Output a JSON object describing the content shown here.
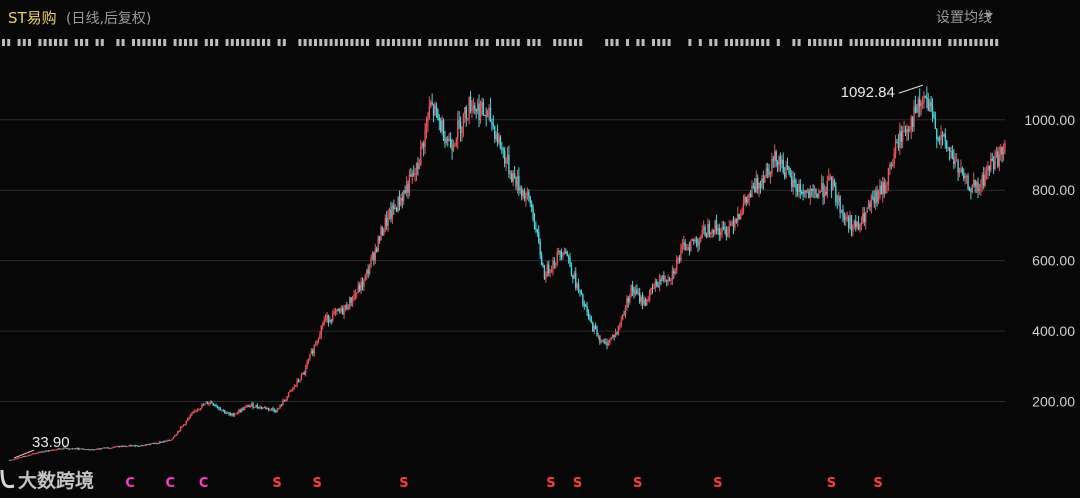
{
  "header": {
    "title": "ST易购",
    "subtitle": "(日线,后复权)",
    "ma_button_label": "设置均线"
  },
  "watermark": {
    "text": "大数跨境"
  },
  "colors": {
    "up": "#e8545a",
    "down": "#46d6e0",
    "grid": "#2b2b2b",
    "axis_text": "#d0d0d0",
    "marker_red": "#ff3a3a",
    "marker_magenta": "#ff3ad2"
  },
  "chart_data": {
    "type": "candlestick",
    "title": "ST易购",
    "ylim": [
      0,
      1130
    ],
    "y_ticks": [
      200,
      400,
      600,
      800,
      1000
    ],
    "y_tick_labels": [
      "200.00",
      "400.00",
      "600.00",
      "800.00",
      "1000.00"
    ],
    "grid": true,
    "annotations": [
      {
        "label": "33.90",
        "value": 33.9,
        "position": "start"
      },
      {
        "label": "1092.84",
        "value": 1092.84,
        "position": "peak"
      }
    ],
    "close_path": [
      [
        0,
        33.9
      ],
      [
        4,
        55
      ],
      [
        8,
        68
      ],
      [
        12,
        64
      ],
      [
        16,
        72
      ],
      [
        20,
        76
      ],
      [
        24,
        90
      ],
      [
        28,
        180
      ],
      [
        30,
        200
      ],
      [
        33,
        160
      ],
      [
        36,
        190
      ],
      [
        40,
        175
      ],
      [
        44,
        280
      ],
      [
        47,
        430
      ],
      [
        50,
        460
      ],
      [
        53,
        540
      ],
      [
        56,
        700
      ],
      [
        58,
        760
      ],
      [
        61,
        860
      ],
      [
        63,
        1040
      ],
      [
        66,
        930
      ],
      [
        69,
        1050
      ],
      [
        72,
        1000
      ],
      [
        75,
        850
      ],
      [
        78,
        760
      ],
      [
        80,
        560
      ],
      [
        83,
        640
      ],
      [
        85,
        520
      ],
      [
        87,
        420
      ],
      [
        89,
        360
      ],
      [
        91,
        400
      ],
      [
        93,
        520
      ],
      [
        95,
        480
      ],
      [
        97,
        540
      ],
      [
        99,
        560
      ],
      [
        101,
        640
      ],
      [
        103,
        660
      ],
      [
        105,
        700
      ],
      [
        107,
        680
      ],
      [
        110,
        760
      ],
      [
        113,
        850
      ],
      [
        115,
        900
      ],
      [
        117,
        820
      ],
      [
        120,
        780
      ],
      [
        123,
        820
      ],
      [
        125,
        720
      ],
      [
        127,
        690
      ],
      [
        129,
        760
      ],
      [
        131,
        810
      ],
      [
        133,
        940
      ],
      [
        135,
        1000
      ],
      [
        137,
        1060
      ],
      [
        139,
        960
      ],
      [
        141,
        900
      ],
      [
        143,
        820
      ],
      [
        145,
        800
      ],
      [
        147,
        880
      ],
      [
        149,
        910
      ]
    ],
    "event_markers": [
      {
        "index": 18,
        "symbol": "C",
        "color": "magenta"
      },
      {
        "index": 24,
        "symbol": "C",
        "color": "magenta"
      },
      {
        "index": 29,
        "symbol": "C",
        "color": "magenta"
      },
      {
        "index": 40,
        "symbol": "S",
        "color": "red"
      },
      {
        "index": 46,
        "symbol": "S",
        "color": "red"
      },
      {
        "index": 59,
        "symbol": "S",
        "color": "red"
      },
      {
        "index": 81,
        "symbol": "S",
        "color": "red"
      },
      {
        "index": 85,
        "symbol": "S",
        "color": "red"
      },
      {
        "index": 94,
        "symbol": "S",
        "color": "red"
      },
      {
        "index": 106,
        "symbol": "S",
        "color": "red"
      },
      {
        "index": 123,
        "symbol": "S",
        "color": "red"
      },
      {
        "index": 130,
        "symbol": "S",
        "color": "red"
      }
    ],
    "event_strip": {
      "value_start": 0,
      "value_end": 150
    }
  }
}
